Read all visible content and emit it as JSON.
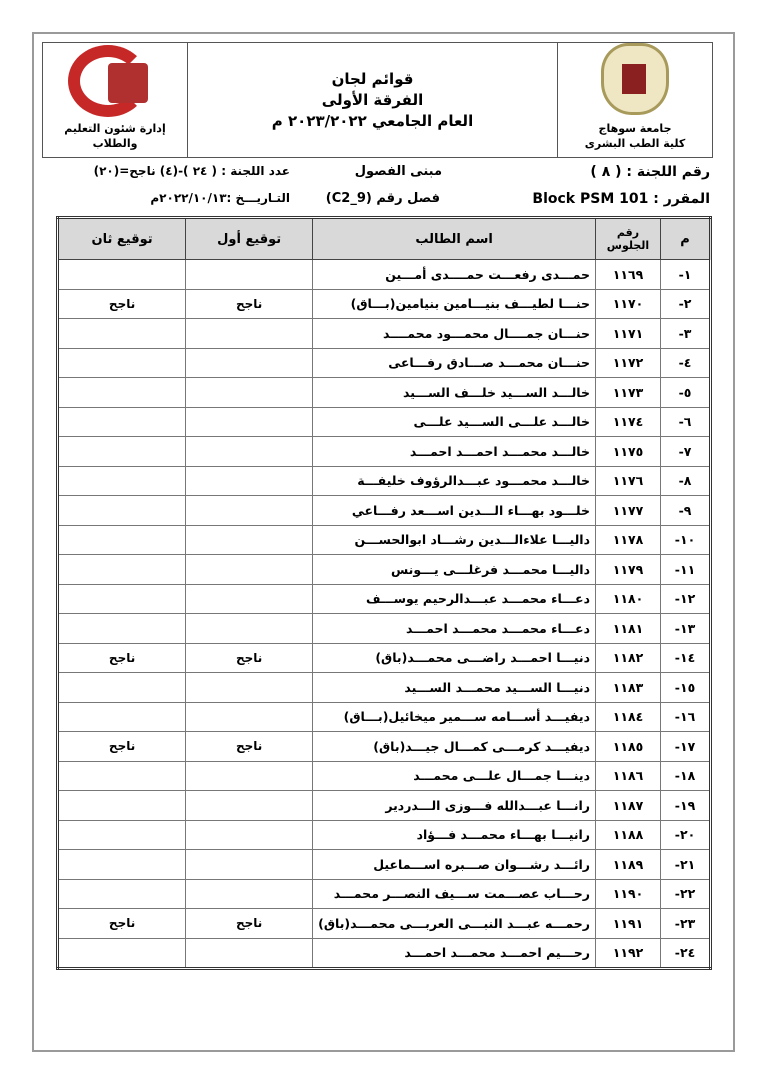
{
  "header": {
    "right": {
      "line1": "جامعة سوهاج",
      "line2": "كلية الطب البشرى"
    },
    "center": {
      "line1": "قوائم لجان",
      "line2": "الفرقة الأولى",
      "line3": "العام الجامعي ٢٠٢٣/٢٠٢٢ م"
    },
    "left": {
      "caption": "إدارة شئون التعليم والطلاب",
      "logo_text": "جامعة سوهاج - كلية الطب"
    }
  },
  "info": {
    "committee_no": "رقم اللجنة : ( ٨ )",
    "building": "مبنى الفصول",
    "count": "عدد اللجنة : ( ٢٤ )-(٤) ناجح=(٢٠)",
    "course": "المقرر : Block PSM 101",
    "classroom": "فصل رقم (C2_9)",
    "date": "التـاريـــخ :٢٠٢٢/١٠/١٣م"
  },
  "table": {
    "headers": [
      "م",
      "رقم الجلوس",
      "اسم الطالب",
      "توقيع أول",
      "توقيع ثان"
    ],
    "rows": [
      {
        "no": "-١",
        "seat": "١١٦٩",
        "name": "حمـــدى رفعـــت حمــــدى أمـــين",
        "sig1": "",
        "sig2": ""
      },
      {
        "no": "-٢",
        "seat": "١١٧٠",
        "name": "حنـــا لطيـــف بنيـــامين بنيامين(بـــاق)",
        "sig1": "ناجح",
        "sig2": "ناجح"
      },
      {
        "no": "-٣",
        "seat": "١١٧١",
        "name": "حنـــان جمــــال محمـــود محمــــد",
        "sig1": "",
        "sig2": ""
      },
      {
        "no": "-٤",
        "seat": "١١٧٢",
        "name": "حنـــان محمـــد صـــادق رفـــاعى",
        "sig1": "",
        "sig2": ""
      },
      {
        "no": "-٥",
        "seat": "١١٧٣",
        "name": "خالـــد الســـيد خلـــف الســـيد",
        "sig1": "",
        "sig2": ""
      },
      {
        "no": "-٦",
        "seat": "١١٧٤",
        "name": "خالـــد علـــى الســـيد علـــى",
        "sig1": "",
        "sig2": ""
      },
      {
        "no": "-٧",
        "seat": "١١٧٥",
        "name": "خالـــد محمـــد احمـــد احمـــد",
        "sig1": "",
        "sig2": ""
      },
      {
        "no": "-٨",
        "seat": "١١٧٦",
        "name": "خالـــد محمـــود عبـــدالرؤوف خليفـــة",
        "sig1": "",
        "sig2": ""
      },
      {
        "no": "-٩",
        "seat": "١١٧٧",
        "name": "خلـــود بهـــاء الـــدين اســـعد رفـــاعي",
        "sig1": "",
        "sig2": ""
      },
      {
        "no": "-١٠",
        "seat": "١١٧٨",
        "name": "داليـــا علاءالـــدين رشـــاد ابوالحســـن",
        "sig1": "",
        "sig2": ""
      },
      {
        "no": "-١١",
        "seat": "١١٧٩",
        "name": "داليـــا محمـــد فرغلـــى يـــونس",
        "sig1": "",
        "sig2": ""
      },
      {
        "no": "-١٢",
        "seat": "١١٨٠",
        "name": "دعـــاء محمـــد عبـــدالرحيم يوســـف",
        "sig1": "",
        "sig2": ""
      },
      {
        "no": "-١٣",
        "seat": "١١٨١",
        "name": "دعـــاء محمـــد محمـــد احمـــد",
        "sig1": "",
        "sig2": ""
      },
      {
        "no": "-١٤",
        "seat": "١١٨٢",
        "name": "دنيـــا احمـــد راضـــى محمـــد(باق)",
        "sig1": "ناجح",
        "sig2": "ناجح"
      },
      {
        "no": "-١٥",
        "seat": "١١٨٣",
        "name": "دنيـــا الســـيد محمـــد الســـيد",
        "sig1": "",
        "sig2": ""
      },
      {
        "no": "-١٦",
        "seat": "١١٨٤",
        "name": "ديفيـــد أســـامه ســـمير ميخائيل(بـــاق)",
        "sig1": "",
        "sig2": ""
      },
      {
        "no": "-١٧",
        "seat": "١١٨٥",
        "name": "ديفيـــد كرمـــى كمـــال جيـــد(باق)",
        "sig1": "ناجح",
        "sig2": "ناجح"
      },
      {
        "no": "-١٨",
        "seat": "١١٨٦",
        "name": "دينـــا جمـــال علـــى محمـــد",
        "sig1": "",
        "sig2": ""
      },
      {
        "no": "-١٩",
        "seat": "١١٨٧",
        "name": "رانـــا عبـــدالله فـــوزى الـــدردير",
        "sig1": "",
        "sig2": ""
      },
      {
        "no": "-٢٠",
        "seat": "١١٨٨",
        "name": "رانيـــا بهـــاء محمـــد فـــؤاد",
        "sig1": "",
        "sig2": ""
      },
      {
        "no": "-٢١",
        "seat": "١١٨٩",
        "name": "رائـــد رشـــوان صـــبره اســـماعيل",
        "sig1": "",
        "sig2": ""
      },
      {
        "no": "-٢٢",
        "seat": "١١٩٠",
        "name": "رحـــاب عصـــمت ســـيف النصـــر محمـــد",
        "sig1": "",
        "sig2": ""
      },
      {
        "no": "-٢٣",
        "seat": "١١٩١",
        "name": "رحمـــه عبـــد النبـــى العربـــى محمـــد(باق)",
        "sig1": "ناجح",
        "sig2": "ناجح"
      },
      {
        "no": "-٢٤",
        "seat": "١١٩٢",
        "name": "رحـــيم احمـــد محمـــد احمـــد",
        "sig1": "",
        "sig2": ""
      }
    ]
  }
}
